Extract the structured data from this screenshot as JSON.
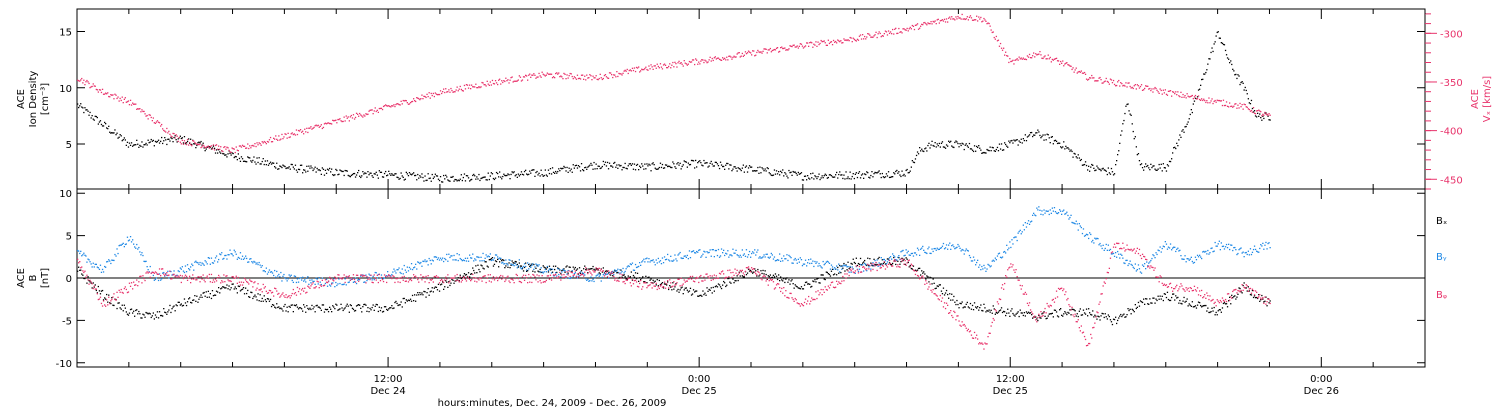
{
  "chart_data": [
    {
      "type": "scatter",
      "panel": "top",
      "ylabel_lines": [
        "ACE",
        "Ion Density",
        "[cm⁻³]"
      ],
      "y2label_lines": [
        "ACE",
        "Vₓ [km/s]"
      ],
      "ylim": [
        1,
        17
      ],
      "y2lim": [
        -460,
        -275
      ],
      "yticks": [
        5,
        10,
        15
      ],
      "y2ticks": [
        -300,
        -350,
        -400,
        -450
      ],
      "series": [
        {
          "axis": "left",
          "color": "#000000",
          "x": [
            0,
            2,
            4,
            6,
            8,
            10,
            12,
            14,
            16,
            18,
            20,
            22,
            24,
            26,
            28,
            30,
            32,
            32.5,
            33,
            34,
            35,
            36,
            37,
            38,
            39,
            40,
            40.5,
            41,
            42,
            43,
            44,
            44.5,
            45,
            45.5,
            46
          ],
          "y": [
            8.5,
            5,
            5.5,
            4,
            3,
            2.5,
            2.3,
            2,
            2.2,
            2.5,
            3.2,
            3,
            3.3,
            2.8,
            2.2,
            2.3,
            2.5,
            4.5,
            5,
            5,
            4.5,
            5,
            6,
            5,
            3,
            2.5,
            9,
            3,
            3,
            8,
            15,
            12,
            10,
            7.5,
            7.5
          ]
        },
        {
          "axis": "right",
          "color": "#e8336b",
          "x": [
            0,
            1,
            2,
            4,
            6,
            8,
            10,
            12,
            14,
            16,
            18,
            20,
            22,
            24,
            26,
            28,
            30,
            32,
            34,
            35,
            36,
            37,
            38,
            39,
            40,
            41,
            42,
            43,
            44,
            45,
            46
          ],
          "y": [
            -345,
            -360,
            -370,
            -410,
            -420,
            -405,
            -390,
            -375,
            -360,
            -350,
            -342,
            -345,
            -335,
            -328,
            -320,
            -312,
            -305,
            -295,
            -282,
            -285,
            -330,
            -320,
            -330,
            -345,
            -350,
            -355,
            -360,
            -365,
            -370,
            -375,
            -385
          ]
        }
      ]
    },
    {
      "type": "scatter",
      "panel": "bottom",
      "ylabel_lines": [
        "ACE",
        "B",
        "[nT]"
      ],
      "ylim": [
        -10.5,
        10.5
      ],
      "yticks": [
        10,
        5,
        0,
        -5,
        -10
      ],
      "zero_line": true,
      "series": [
        {
          "name": "Bₓ",
          "color": "#000000",
          "x": [
            0,
            1,
            2,
            3,
            4,
            6,
            8,
            10,
            12,
            14,
            16,
            18,
            20,
            22,
            24,
            26,
            28,
            30,
            32,
            34,
            36,
            37,
            38,
            39,
            40,
            41,
            42,
            43,
            44,
            45,
            46
          ],
          "y": [
            1,
            -2,
            -4,
            -4.5,
            -3,
            -1,
            -3.5,
            -3.5,
            -3.5,
            -1,
            2,
            1,
            1,
            0,
            -2,
            1,
            -1,
            2,
            2,
            -3,
            -4,
            -4.5,
            -4,
            -4,
            -5,
            -3,
            -2,
            -3,
            -4,
            -1,
            -3
          ]
        },
        {
          "name": "Bᵧ",
          "color": "#1e88e5",
          "x": [
            0,
            1,
            2,
            3,
            4,
            6,
            8,
            10,
            12,
            14,
            16,
            18,
            20,
            22,
            24,
            26,
            28,
            30,
            32,
            34,
            35,
            36,
            37,
            38,
            39,
            40,
            41,
            42,
            43,
            44,
            45,
            46
          ],
          "y": [
            3,
            1,
            5,
            0,
            1,
            3,
            0,
            -0.5,
            0.5,
            2.5,
            2.5,
            1,
            0,
            2,
            3,
            3,
            2,
            1,
            3,
            4,
            1,
            4,
            8,
            8,
            5,
            3,
            1,
            4,
            2,
            4,
            3,
            4
          ]
        },
        {
          "name": "Bᵩ",
          "color": "#e8336b",
          "x": [
            0,
            1,
            2,
            3,
            4,
            6,
            8,
            10,
            12,
            14,
            16,
            18,
            20,
            22,
            24,
            26,
            28,
            30,
            32,
            34,
            35,
            36,
            37,
            38,
            39,
            40,
            41,
            42,
            43,
            44,
            45,
            46
          ],
          "y": [
            2,
            -3,
            -1,
            1,
            0,
            0,
            -2,
            0,
            0,
            0,
            0,
            0,
            1,
            -1,
            0,
            1,
            -3,
            1,
            2,
            -5,
            -8,
            2,
            -5,
            -1,
            -8,
            4,
            3,
            -1,
            -1,
            -3,
            -1,
            -3
          ]
        }
      ],
      "legend": [
        "Bₓ",
        "Bᵧ",
        "Bᵩ"
      ]
    }
  ],
  "xaxis": {
    "ticks": [
      {
        "time": "12:00",
        "date": "Dec 24"
      },
      {
        "time": "0:00",
        "date": "Dec 25"
      },
      {
        "time": "12:00",
        "date": "Dec 25"
      },
      {
        "time": "0:00",
        "date": "Dec 26"
      }
    ],
    "label": "hours:minutes, Dec. 24, 2009 - Dec. 26, 2009"
  },
  "colors": {
    "black": "#000000",
    "blue": "#1e88e5",
    "pink": "#e8336b"
  }
}
